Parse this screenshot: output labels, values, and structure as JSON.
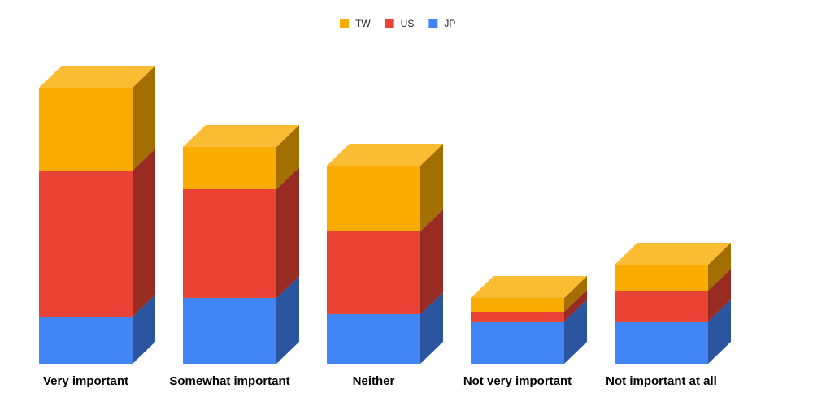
{
  "chart_data": {
    "type": "bar3d_stacked",
    "categories": [
      "Very important",
      "Somewhat important",
      "Neither",
      "Not very important",
      "Not important at all"
    ],
    "series": [
      {
        "name": "JP",
        "color": "#4285f4",
        "values": [
          58,
          81,
          61,
          52,
          52
        ]
      },
      {
        "name": "US",
        "color": "#ea4335",
        "values": [
          180,
          134,
          102,
          12,
          38
        ]
      },
      {
        "name": "TW",
        "color": "#f9ab00",
        "values": [
          102,
          52,
          81,
          17,
          32
        ]
      }
    ]
  }
}
